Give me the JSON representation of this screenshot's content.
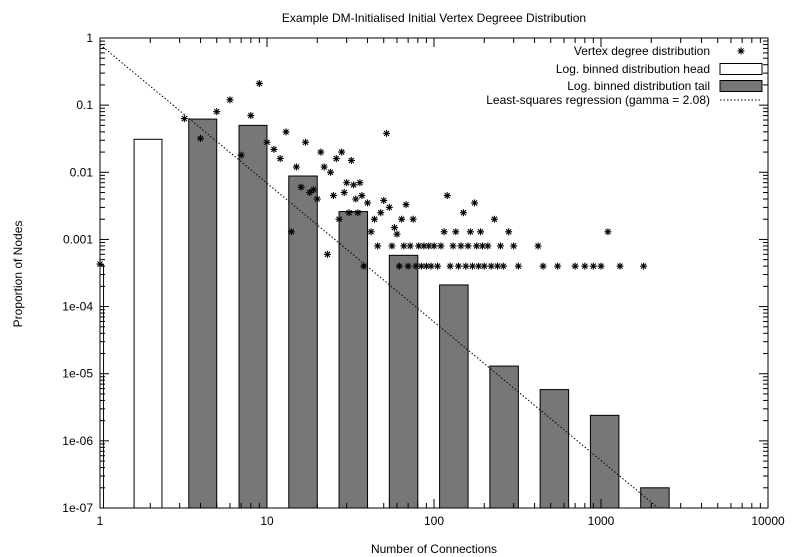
{
  "chart_data": {
    "type": "bar",
    "title": "Example DM-Initialised Initial Vertex Degreee Distribution",
    "xlabel": "Number of Connections",
    "ylabel": "Proportion of Nodes",
    "x_scale": "log",
    "y_scale": "log",
    "xlim": [
      1,
      10000
    ],
    "ylim": [
      1e-07,
      1
    ],
    "x_ticks": [
      {
        "value": 1,
        "label": "1"
      },
      {
        "value": 10,
        "label": "10"
      },
      {
        "value": 100,
        "label": "100"
      },
      {
        "value": 1000,
        "label": "1000"
      },
      {
        "value": 10000,
        "label": "10000"
      }
    ],
    "y_ticks": [
      {
        "value": 1e-07,
        "label": "1e-07"
      },
      {
        "value": 1e-06,
        "label": "1e-06"
      },
      {
        "value": 1e-05,
        "label": "1e-05"
      },
      {
        "value": 0.0001,
        "label": "1e-04"
      },
      {
        "value": 0.001,
        "label": "0.001"
      },
      {
        "value": 0.01,
        "label": "0.01"
      },
      {
        "value": 0.1,
        "label": "0.1"
      },
      {
        "value": 1,
        "label": "1"
      }
    ],
    "grid": false,
    "legend_position": "top-right",
    "series": [
      {
        "name": "Vertex degree distribution",
        "type": "scatter",
        "marker": "asterisk",
        "points": [
          [
            1,
            0.00043
          ],
          [
            3.2,
            0.063
          ],
          [
            4,
            0.032
          ],
          [
            5,
            0.08
          ],
          [
            6,
            0.12
          ],
          [
            7,
            0.018
          ],
          [
            8,
            0.07
          ],
          [
            9,
            0.21
          ],
          [
            10,
            0.028
          ],
          [
            11,
            0.022
          ],
          [
            12,
            0.016
          ],
          [
            13,
            0.04
          ],
          [
            14,
            0.0013
          ],
          [
            15,
            0.012
          ],
          [
            16,
            0.006
          ],
          [
            17,
            0.028
          ],
          [
            18,
            0.005
          ],
          [
            19,
            0.0055
          ],
          [
            20,
            0.004
          ],
          [
            21,
            0.02
          ],
          [
            22,
            0.012
          ],
          [
            23,
            0.0006
          ],
          [
            24,
            0.01
          ],
          [
            25,
            0.0045
          ],
          [
            26,
            0.016
          ],
          [
            27,
            0.002
          ],
          [
            28,
            0.02
          ],
          [
            29,
            0.005
          ],
          [
            30,
            0.007
          ],
          [
            31,
            0.0025
          ],
          [
            32,
            0.015
          ],
          [
            33,
            0.0065
          ],
          [
            34,
            0.004
          ],
          [
            35,
            0.0025
          ],
          [
            36,
            0.007
          ],
          [
            37,
            0.0045
          ],
          [
            38,
            0.0004
          ],
          [
            40,
            0.0035
          ],
          [
            42,
            0.0013
          ],
          [
            44,
            0.002
          ],
          [
            46,
            0.0008
          ],
          [
            48,
            0.0025
          ],
          [
            50,
            0.0038
          ],
          [
            52,
            0.038
          ],
          [
            54,
            0.003
          ],
          [
            56,
            0.0008
          ],
          [
            58,
            0.0015
          ],
          [
            60,
            0.0012
          ],
          [
            62,
            0.0004
          ],
          [
            64,
            0.002
          ],
          [
            66,
            0.0008
          ],
          [
            68,
            0.0033
          ],
          [
            70,
            0.0004
          ],
          [
            72,
            0.0008
          ],
          [
            75,
            0.002
          ],
          [
            78,
            0.0004
          ],
          [
            81,
            0.0008
          ],
          [
            84,
            0.0004
          ],
          [
            87,
            0.0008
          ],
          [
            90,
            0.0004
          ],
          [
            93,
            0.0008
          ],
          [
            96,
            0.0004
          ],
          [
            100,
            0.0008
          ],
          [
            105,
            0.0004
          ],
          [
            110,
            0.0008
          ],
          [
            115,
            0.0013
          ],
          [
            120,
            0.0045
          ],
          [
            125,
            0.0004
          ],
          [
            130,
            0.0008
          ],
          [
            135,
            0.0013
          ],
          [
            140,
            0.0004
          ],
          [
            145,
            0.0008
          ],
          [
            150,
            0.0025
          ],
          [
            155,
            0.0004
          ],
          [
            160,
            0.0008
          ],
          [
            165,
            0.0013
          ],
          [
            170,
            0.0004
          ],
          [
            175,
            0.0035
          ],
          [
            180,
            0.0008
          ],
          [
            185,
            0.0004
          ],
          [
            190,
            0.0013
          ],
          [
            195,
            0.0008
          ],
          [
            200,
            0.0004
          ],
          [
            210,
            0.0008
          ],
          [
            220,
            0.0004
          ],
          [
            230,
            0.002
          ],
          [
            240,
            0.0004
          ],
          [
            250,
            0.0008
          ],
          [
            260,
            0.0004
          ],
          [
            280,
            0.0013
          ],
          [
            300,
            0.0008
          ],
          [
            320,
            0.0004
          ],
          [
            420,
            0.0008
          ],
          [
            450,
            0.0004
          ],
          [
            550,
            0.0004
          ],
          [
            700,
            0.0004
          ],
          [
            800,
            0.0004
          ],
          [
            900,
            0.0004
          ],
          [
            1000,
            0.0004
          ],
          [
            1100,
            0.0013
          ],
          [
            1300,
            0.0004
          ],
          [
            1800,
            0.0004
          ]
        ]
      },
      {
        "name": "Log. binned distribution head",
        "type": "bar",
        "fill": "#ffffff",
        "bins": [
          {
            "x0": 0.95,
            "x1": 1.05,
            "value": 0.00042
          },
          {
            "x0": 1.6,
            "x1": 2.35,
            "value": 0.031
          }
        ]
      },
      {
        "name": "Log. binned distribution tail",
        "type": "bar",
        "fill": "#777777",
        "bins": [
          {
            "x0": 3.4,
            "x1": 5.0,
            "value": 0.062
          },
          {
            "x0": 6.8,
            "x1": 10.0,
            "value": 0.05
          },
          {
            "x0": 13.5,
            "x1": 20.0,
            "value": 0.0088
          },
          {
            "x0": 27.0,
            "x1": 40.0,
            "value": 0.0026
          },
          {
            "x0": 54.0,
            "x1": 80.0,
            "value": 0.00058
          },
          {
            "x0": 108.0,
            "x1": 160.0,
            "value": 0.00021
          },
          {
            "x0": 216.0,
            "x1": 320.0,
            "value": 1.3e-05
          },
          {
            "x0": 432.0,
            "x1": 640.0,
            "value": 5.8e-06
          },
          {
            "x0": 864.0,
            "x1": 1280.0,
            "value": 2.4e-06
          },
          {
            "x0": 1728.0,
            "x1": 2560.0,
            "value": 2e-07
          }
        ]
      },
      {
        "name": "Least-squares regression (gamma = 2.08)",
        "type": "line",
        "style": "dotted",
        "points": [
          [
            1,
            0.8
          ],
          [
            2200,
            1e-07
          ]
        ]
      }
    ]
  }
}
